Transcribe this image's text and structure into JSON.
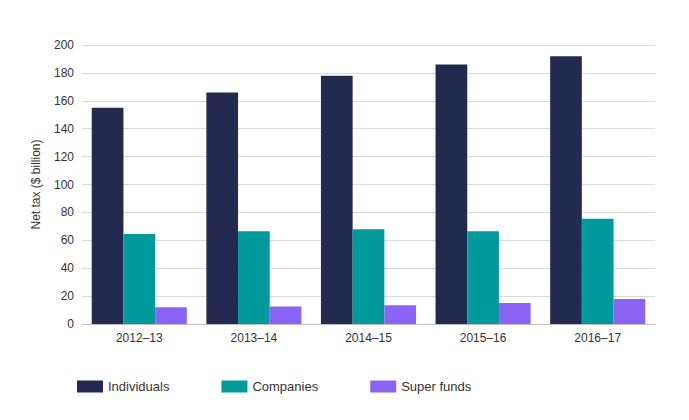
{
  "chart_data": {
    "type": "bar",
    "y_label": "Net tax ($ billion)",
    "categories": [
      "2012–13",
      "2013–14",
      "2014–15",
      "2015–16",
      "2016–17"
    ],
    "series": [
      {
        "name": "Individuals",
        "color": "#232a50",
        "values": [
          155,
          166,
          178,
          186,
          192
        ]
      },
      {
        "name": "Companies",
        "color": "#009a9c",
        "values": [
          64.5,
          66.5,
          68,
          66.5,
          75.5
        ]
      },
      {
        "name": "Super funds",
        "color": "#8c64f5",
        "values": [
          12,
          12.5,
          13.5,
          15,
          18
        ]
      }
    ],
    "ylim": [
      0,
      200
    ],
    "yticks": [
      0,
      20,
      40,
      60,
      80,
      100,
      120,
      140,
      160,
      180,
      200
    ],
    "grid": true,
    "legend": "bottom-left"
  }
}
